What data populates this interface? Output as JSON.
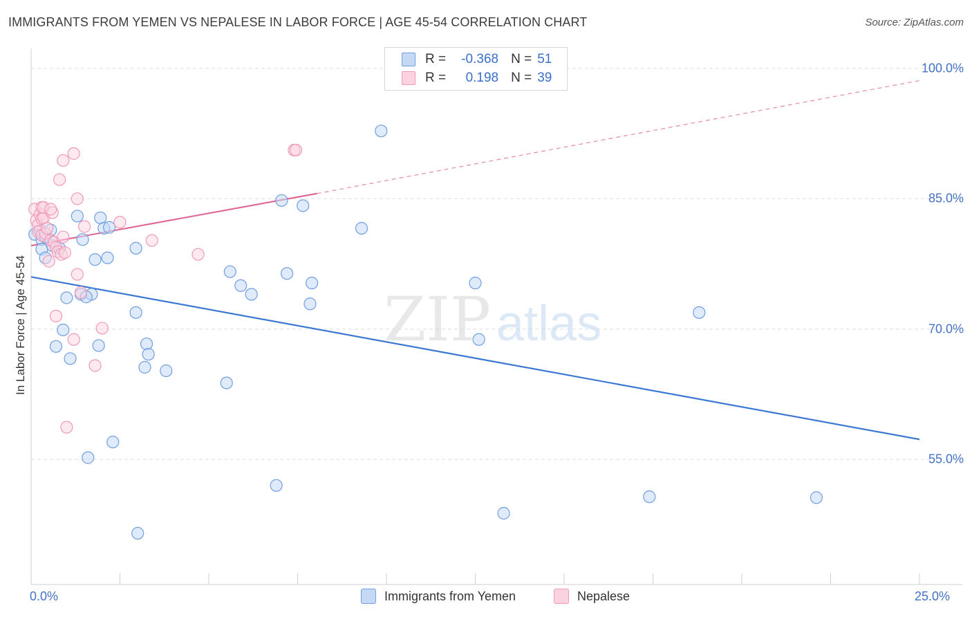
{
  "header": {
    "title": "IMMIGRANTS FROM YEMEN VS NEPALESE IN LABOR FORCE | AGE 45-54 CORRELATION CHART",
    "source": "Source: ZipAtlas.com"
  },
  "watermark": {
    "zip": "ZIP",
    "atlas": "atlas"
  },
  "colors": {
    "yemen": "#6f9fe0",
    "yemen_fill": "#c5d9f5",
    "yemen_line": "#3a78d4",
    "nepal": "#f09ab8",
    "nepal_fill": "#fbd3e0",
    "nepal_line": "#e06a97",
    "grid": "#dddddd",
    "tick_label": "#4472c4"
  },
  "legend": {
    "rows": [
      {
        "r_label": "R =",
        "r_value": "-0.368",
        "n_label": "N =",
        "n_value": "51"
      },
      {
        "r_label": "R =",
        "r_value": "0.198",
        "n_label": "N =",
        "n_value": "39"
      }
    ]
  },
  "chart_data": {
    "type": "scatter",
    "title": "IMMIGRANTS FROM YEMEN VS NEPALESE IN LABOR FORCE | AGE 45-54 CORRELATION CHART",
    "xlabel": "",
    "ylabel": "In Labor Force | Age 45-54",
    "xlim": [
      0,
      25
    ],
    "ylim": [
      40.6,
      102.3
    ],
    "x_tick_labels": [
      "0.0%",
      "25.0%"
    ],
    "y_ticks": [
      55,
      70,
      85,
      100
    ],
    "y_tick_labels": [
      "55.0%",
      "70.0%",
      "85.0%",
      "100.0%"
    ],
    "grid": "horizontal dashed",
    "legend_position": "top-center",
    "series": [
      {
        "name": "Immigrants from Yemen",
        "r": -0.368,
        "n": 51,
        "points": [
          [
            0.1,
            80.9
          ],
          [
            0.25,
            81.3
          ],
          [
            0.3,
            80.3
          ],
          [
            0.4,
            80.6
          ],
          [
            0.55,
            81.4
          ],
          [
            0.3,
            79.2
          ],
          [
            0.6,
            79.6
          ],
          [
            0.8,
            79.3
          ],
          [
            0.4,
            78.2
          ],
          [
            1.3,
            83.0
          ],
          [
            1.45,
            80.3
          ],
          [
            1.95,
            82.8
          ],
          [
            2.05,
            81.6
          ],
          [
            2.2,
            81.7
          ],
          [
            1.8,
            78.0
          ],
          [
            2.15,
            78.2
          ],
          [
            2.95,
            79.3
          ],
          [
            1.7,
            74.0
          ],
          [
            1.4,
            74.0
          ],
          [
            1.55,
            73.7
          ],
          [
            1.0,
            73.6
          ],
          [
            0.9,
            69.9
          ],
          [
            2.95,
            71.9
          ],
          [
            0.7,
            68.0
          ],
          [
            1.9,
            68.1
          ],
          [
            3.25,
            68.3
          ],
          [
            3.3,
            67.1
          ],
          [
            1.1,
            66.6
          ],
          [
            3.2,
            65.6
          ],
          [
            3.8,
            65.2
          ],
          [
            5.6,
            76.6
          ],
          [
            5.9,
            75.0
          ],
          [
            6.2,
            74.0
          ],
          [
            7.2,
            76.4
          ],
          [
            7.05,
            84.8
          ],
          [
            7.65,
            84.2
          ],
          [
            7.9,
            75.3
          ],
          [
            7.85,
            72.9
          ],
          [
            9.3,
            81.6
          ],
          [
            9.85,
            92.8
          ],
          [
            12.5,
            75.3
          ],
          [
            12.6,
            68.8
          ],
          [
            18.8,
            71.9
          ],
          [
            5.5,
            63.8
          ],
          [
            2.3,
            57.0
          ],
          [
            1.6,
            55.2
          ],
          [
            6.9,
            52.0
          ],
          [
            3.0,
            46.5
          ],
          [
            13.3,
            48.8
          ],
          [
            17.4,
            50.7
          ],
          [
            22.1,
            50.6
          ]
        ],
        "trend": {
          "x": [
            0,
            25
          ],
          "y": [
            76.0,
            57.3
          ]
        }
      },
      {
        "name": "Nepalese",
        "r": 0.198,
        "n": 39,
        "points": [
          [
            0.1,
            83.8
          ],
          [
            0.15,
            82.5
          ],
          [
            0.2,
            82.0
          ],
          [
            0.25,
            83.2
          ],
          [
            0.3,
            82.7
          ],
          [
            0.35,
            82.8
          ],
          [
            0.2,
            81.2
          ],
          [
            0.3,
            80.8
          ],
          [
            0.4,
            81.0
          ],
          [
            0.45,
            81.6
          ],
          [
            0.55,
            80.2
          ],
          [
            0.65,
            80.0
          ],
          [
            0.7,
            79.4
          ],
          [
            0.75,
            78.9
          ],
          [
            0.85,
            78.6
          ],
          [
            0.9,
            80.6
          ],
          [
            0.95,
            78.8
          ],
          [
            0.5,
            77.8
          ],
          [
            0.3,
            84.0
          ],
          [
            0.35,
            84.0
          ],
          [
            0.6,
            83.4
          ],
          [
            0.55,
            83.8
          ],
          [
            0.9,
            89.4
          ],
          [
            1.2,
            90.2
          ],
          [
            0.8,
            87.2
          ],
          [
            1.3,
            85.0
          ],
          [
            1.5,
            81.8
          ],
          [
            2.5,
            82.3
          ],
          [
            3.4,
            80.2
          ],
          [
            4.7,
            78.6
          ],
          [
            1.3,
            76.3
          ],
          [
            1.4,
            74.2
          ],
          [
            0.7,
            71.5
          ],
          [
            1.2,
            68.8
          ],
          [
            2.0,
            70.1
          ],
          [
            1.8,
            65.8
          ],
          [
            1.0,
            58.7
          ],
          [
            7.4,
            90.6
          ],
          [
            7.45,
            90.6
          ]
        ],
        "trend": {
          "x": [
            0,
            8.05
          ],
          "y": [
            79.6,
            85.6
          ]
        },
        "trend_extension": {
          "x": [
            8.05,
            25
          ],
          "y": [
            85.6,
            98.6
          ]
        }
      }
    ]
  },
  "bottom_legend": {
    "items": [
      {
        "label": "Immigrants from Yemen"
      },
      {
        "label": "Nepalese"
      }
    ]
  }
}
